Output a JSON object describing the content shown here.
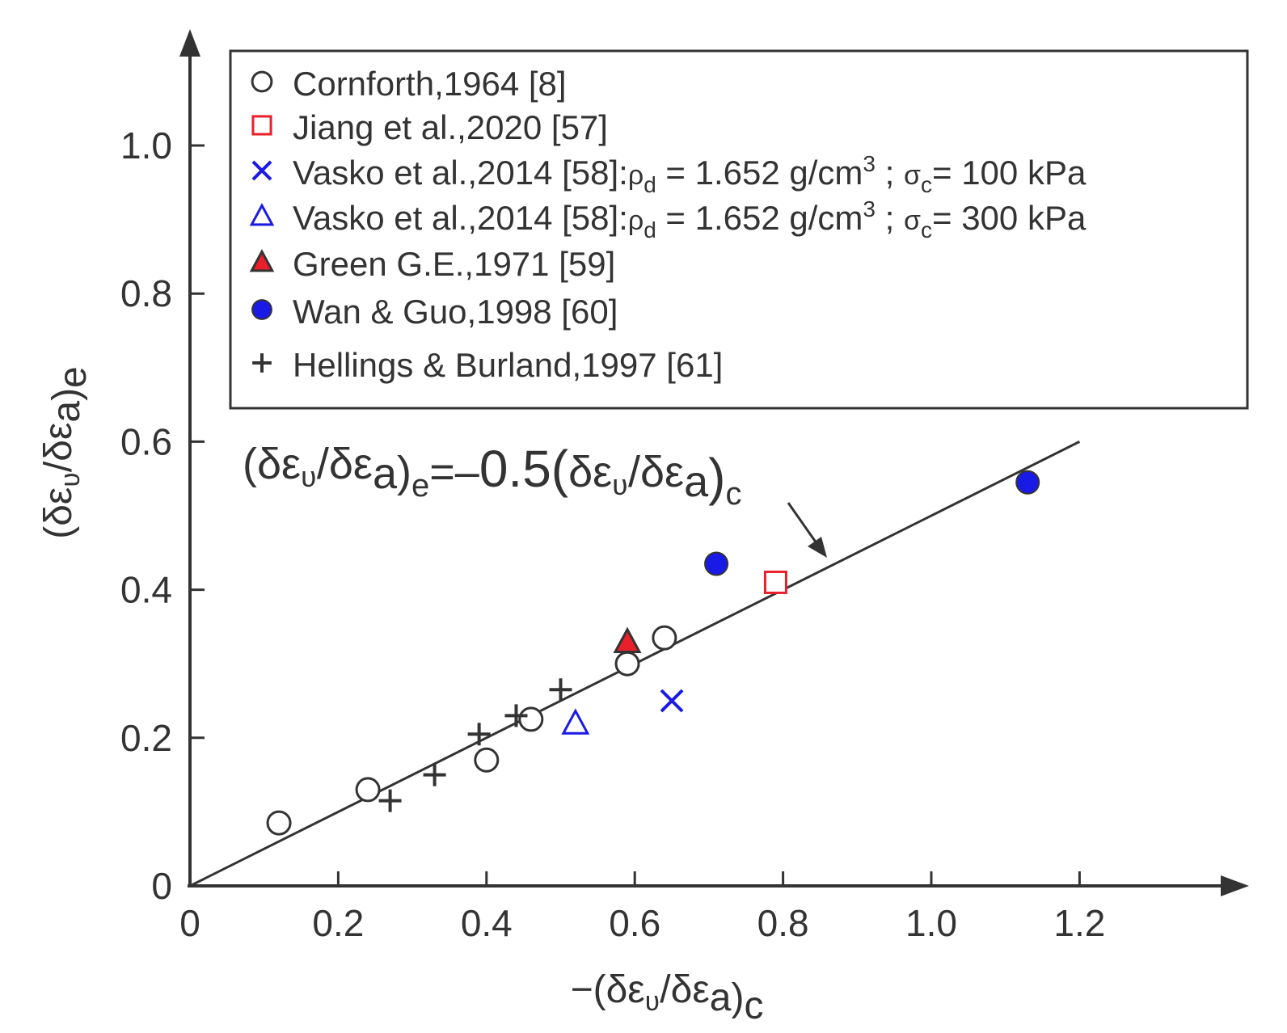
{
  "chart_data": {
    "type": "scatter",
    "xlabel": "−(δεʋ/δεa)c",
    "ylabel": "(δεʋ/δεa)e",
    "xlim": [
      0,
      1.4
    ],
    "ylim": [
      0,
      1.1
    ],
    "x_ticks": [
      0,
      0.2,
      0.4,
      0.6,
      0.8,
      1.0,
      1.2
    ],
    "x_tick_labels": [
      "0",
      "0.2",
      "0.4",
      "0.6",
      "0.8",
      "1.0",
      "1.2"
    ],
    "y_ticks": [
      0,
      0.2,
      0.4,
      0.6,
      0.8,
      1.0
    ],
    "y_tick_labels": [
      "0",
      "0.2",
      "0.4",
      "0.6",
      "0.8",
      "1.0"
    ],
    "grid": false,
    "legend_position": "top-right",
    "series": [
      {
        "name": "Cornforth,1964 [8]",
        "marker": "circle-open",
        "color": "#333333",
        "x": [
          0.12,
          0.24,
          0.4,
          0.46,
          0.59,
          0.64
        ],
        "y": [
          0.085,
          0.13,
          0.17,
          0.225,
          0.3,
          0.335
        ]
      },
      {
        "name": "Jiang et al.,2020 [57]",
        "marker": "square-open",
        "color": "#e8202a",
        "x": [
          0.79
        ],
        "y": [
          0.41
        ]
      },
      {
        "name": "Vasko et al.,2014 [58]:",
        "legend_suffix": {
          "rho": "ρ",
          "rho_sub": "d",
          "rho_value": " = 1.652 g/cm",
          "rho_sup": "3",
          "sep": " ; ",
          "sigma": "σ",
          "sigma_sub": "c",
          "sigma_value": "= 100 kPa"
        },
        "marker": "x",
        "color": "#1a1ae6",
        "x": [
          0.65
        ],
        "y": [
          0.25
        ]
      },
      {
        "name": "Vasko et al.,2014 [58]:",
        "legend_suffix": {
          "rho": "ρ",
          "rho_sub": "d",
          "rho_value": " = 1.652 g/cm",
          "rho_sup": "3",
          "sep": " ; ",
          "sigma": "σ",
          "sigma_sub": "c",
          "sigma_value": "= 300 kPa"
        },
        "marker": "triangle-open",
        "color": "#1a1ae6",
        "x": [
          0.52
        ],
        "y": [
          0.22
        ]
      },
      {
        "name": "Green G.E.,1971 [59]",
        "marker": "triangle-filled",
        "color": "#e8202a",
        "x": [
          0.59
        ],
        "y": [
          0.33
        ]
      },
      {
        "name": "Wan & Guo,1998 [60]",
        "marker": "circle-filled",
        "color": "#1a1ae6",
        "x": [
          0.71,
          1.13
        ],
        "y": [
          0.435,
          0.545
        ]
      },
      {
        "name": "Hellings & Burland,1997 [61]",
        "marker": "plus",
        "color": "#333333",
        "x": [
          0.27,
          0.33,
          0.39,
          0.44,
          0.5
        ],
        "y": [
          0.115,
          0.15,
          0.205,
          0.23,
          0.265
        ]
      }
    ],
    "fit_line": {
      "x": [
        0,
        1.2
      ],
      "y": [
        0,
        0.6
      ]
    },
    "annotation": {
      "open": "(",
      "d1": "δε",
      "sub1": "ʋ",
      "slash": "/",
      "d2": "δε",
      "sub2": "a",
      "close": ")",
      "subE": "e",
      "eq": "=–",
      "coef": "0.5",
      "open2": "(",
      "close2": ")",
      "subC": "c"
    }
  }
}
